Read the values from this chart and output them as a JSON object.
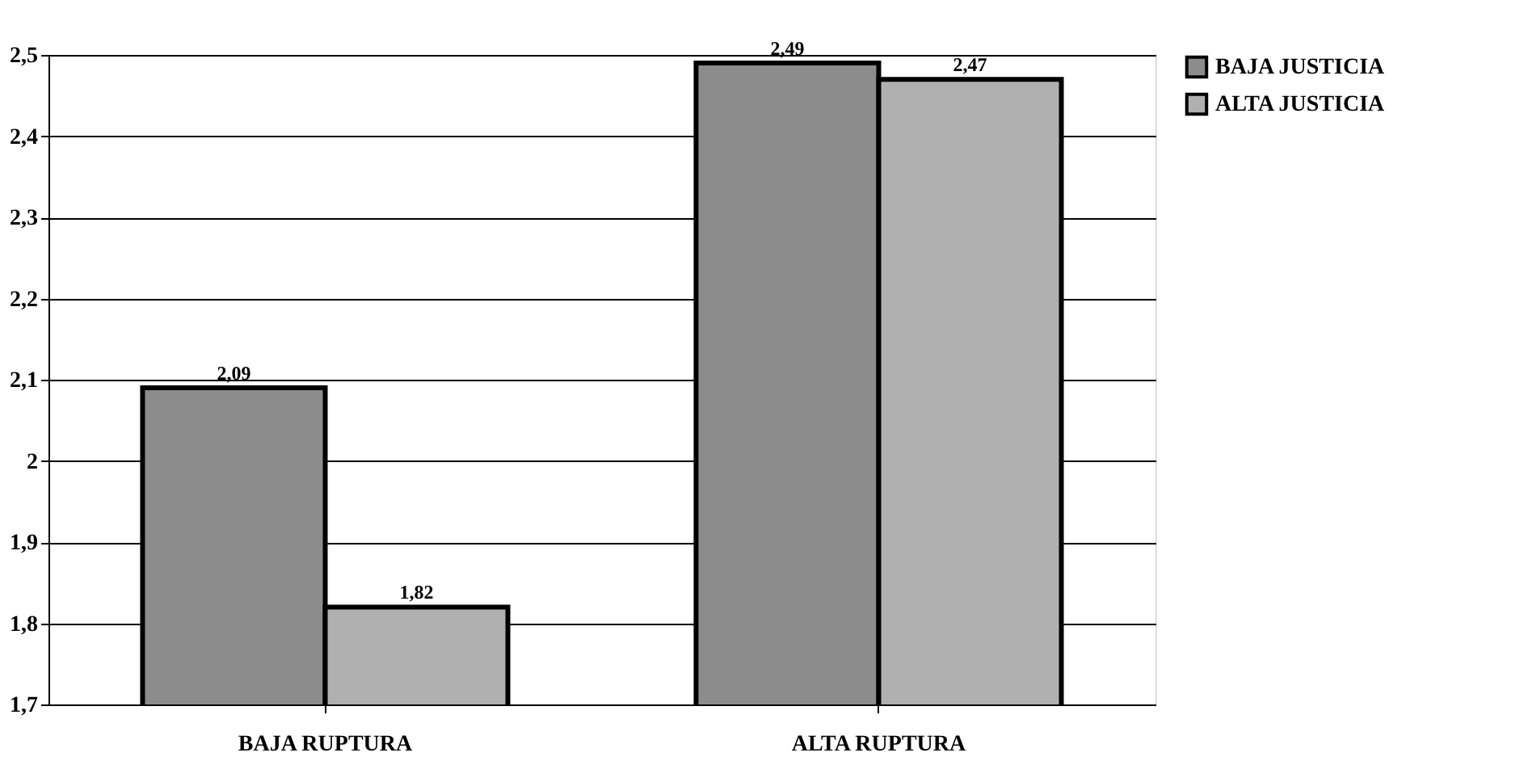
{
  "chart_data": {
    "type": "bar",
    "categories": [
      "BAJA RUPTURA",
      "ALTA RUPTURA"
    ],
    "series": [
      {
        "name": "BAJA JUSTICIA",
        "color": "#8c8c8c",
        "values": [
          2.09,
          2.49
        ],
        "value_labels": [
          "2,09",
          "2,49"
        ]
      },
      {
        "name": "ALTA JUSTICIA",
        "color": "#b0b0b0",
        "values": [
          1.82,
          2.47
        ],
        "value_labels": [
          "1,82",
          "2,47"
        ]
      }
    ],
    "ylim": [
      1.7,
      2.5
    ],
    "yticks": [
      {
        "value": 1.7,
        "label": "1,7"
      },
      {
        "value": 1.8,
        "label": "1,8"
      },
      {
        "value": 1.9,
        "label": "1,9"
      },
      {
        "value": 2,
        "label": "2"
      },
      {
        "value": 2.1,
        "label": "2,1"
      },
      {
        "value": 2.2,
        "label": "2,2"
      },
      {
        "value": 2.3,
        "label": "2,3"
      },
      {
        "value": 2.4,
        "label": "2,4"
      },
      {
        "value": 2.5,
        "label": "2,5"
      }
    ],
    "grid": "y",
    "legend": "right"
  }
}
